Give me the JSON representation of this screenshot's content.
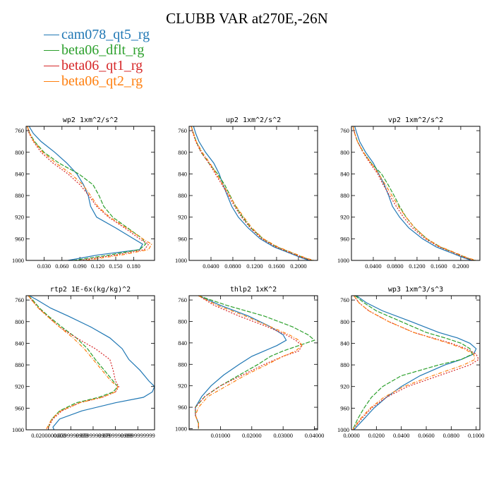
{
  "title": "CLUBB VAR at270E,-26N",
  "legend": [
    {
      "label": "cam078_qt5_rg",
      "color": "#1f77b4",
      "dash": ""
    },
    {
      "label": "beta06_dflt_rg",
      "color": "#2ca02c",
      "dash": "6,2"
    },
    {
      "label": "beta06_qt1_rg",
      "color": "#d62728",
      "dash": "2,2"
    },
    {
      "label": "beta06_qt2_rg",
      "color": "#ff7f0e",
      "dash": "5,2,1,2"
    }
  ],
  "chart_data": [
    {
      "type": "line",
      "title": "wp2  1xm^2/s^2",
      "ylim": [
        1000,
        752
      ],
      "yticks": [
        760,
        800,
        840,
        880,
        920,
        960,
        1000
      ],
      "ytick_labels": [
        "760",
        "800",
        "840",
        "880",
        "920",
        "960",
        "1000"
      ],
      "xlim": [
        0.0,
        0.215
      ],
      "xticks": [
        0.03,
        0.06,
        0.09,
        0.12,
        0.15,
        0.18
      ],
      "xtick_labels": [
        "0.030",
        "0.060",
        "0.090",
        "0.120",
        "0.150",
        "0.180"
      ],
      "y": [
        752,
        765,
        780,
        800,
        820,
        840,
        860,
        880,
        900,
        920,
        940,
        960,
        970,
        980,
        990,
        1000
      ],
      "series": [
        {
          "name": "cam078_qt5_rg",
          "values": [
            0.005,
            0.012,
            0.025,
            0.048,
            0.068,
            0.085,
            0.096,
            0.104,
            0.108,
            0.118,
            0.15,
            0.18,
            0.195,
            0.19,
            0.12,
            0.07
          ]
        },
        {
          "name": "beta06_dflt_rg",
          "values": [
            0.002,
            0.006,
            0.014,
            0.03,
            0.055,
            0.088,
            0.112,
            0.122,
            0.13,
            0.145,
            0.17,
            0.195,
            0.2,
            0.19,
            0.14,
            0.08
          ]
        },
        {
          "name": "beta06_qt1_rg",
          "values": [
            0.002,
            0.005,
            0.012,
            0.025,
            0.045,
            0.07,
            0.09,
            0.105,
            0.118,
            0.138,
            0.165,
            0.19,
            0.205,
            0.198,
            0.15,
            0.09
          ]
        },
        {
          "name": "beta06_qt2_rg",
          "values": [
            0.002,
            0.006,
            0.013,
            0.028,
            0.05,
            0.075,
            0.095,
            0.108,
            0.12,
            0.14,
            0.168,
            0.195,
            0.21,
            0.205,
            0.16,
            0.1
          ]
        }
      ]
    },
    {
      "type": "line",
      "title": "up2  1xm^2/s^2",
      "ylim": [
        1000,
        752
      ],
      "yticks": [
        760,
        800,
        840,
        880,
        920,
        960,
        1000
      ],
      "ytick_labels": [
        "760",
        "800",
        "840",
        "880",
        "920",
        "960",
        "1000"
      ],
      "xlim": [
        0.0,
        0.235
      ],
      "xticks": [
        0.04,
        0.08,
        0.12,
        0.16,
        0.2
      ],
      "xtick_labels": [
        "0.0400",
        "0.0800",
        "0.1200",
        "0.1600",
        "0.2000"
      ],
      "y": [
        752,
        765,
        780,
        800,
        820,
        840,
        860,
        880,
        900,
        920,
        940,
        960,
        975,
        985,
        995,
        1000
      ],
      "series": [
        {
          "name": "cam078_qt5_rg",
          "values": [
            0.008,
            0.012,
            0.018,
            0.03,
            0.045,
            0.055,
            0.062,
            0.07,
            0.078,
            0.09,
            0.108,
            0.13,
            0.155,
            0.18,
            0.205,
            0.22
          ]
        },
        {
          "name": "beta06_dflt_rg",
          "values": [
            0.004,
            0.008,
            0.013,
            0.022,
            0.036,
            0.052,
            0.065,
            0.075,
            0.085,
            0.098,
            0.113,
            0.135,
            0.16,
            0.185,
            0.21,
            0.225
          ]
        },
        {
          "name": "beta06_qt1_rg",
          "values": [
            0.004,
            0.007,
            0.012,
            0.022,
            0.036,
            0.048,
            0.06,
            0.072,
            0.083,
            0.096,
            0.112,
            0.133,
            0.158,
            0.183,
            0.208,
            0.225
          ]
        },
        {
          "name": "beta06_qt2_rg",
          "values": [
            0.004,
            0.008,
            0.013,
            0.024,
            0.038,
            0.05,
            0.062,
            0.074,
            0.086,
            0.1,
            0.115,
            0.136,
            0.162,
            0.187,
            0.212,
            0.228
          ]
        }
      ]
    },
    {
      "type": "line",
      "title": "vp2  1xm^2/s^2",
      "ylim": [
        1000,
        752
      ],
      "yticks": [
        760,
        800,
        840,
        880,
        920,
        960,
        1000
      ],
      "ytick_labels": [
        "760",
        "800",
        "840",
        "880",
        "920",
        "960",
        "1000"
      ],
      "xlim": [
        0.0,
        0.235
      ],
      "xticks": [
        0.04,
        0.08,
        0.12,
        0.16,
        0.2
      ],
      "xtick_labels": [
        "0.0400",
        "0.0800",
        "0.1200",
        "0.1600",
        "0.2000"
      ],
      "y": [
        752,
        765,
        780,
        800,
        820,
        840,
        860,
        880,
        900,
        920,
        940,
        960,
        975,
        985,
        995,
        1000
      ],
      "series": [
        {
          "name": "cam078_qt5_rg",
          "values": [
            0.006,
            0.01,
            0.015,
            0.026,
            0.04,
            0.05,
            0.06,
            0.068,
            0.075,
            0.088,
            0.105,
            0.13,
            0.155,
            0.18,
            0.205,
            0.22
          ]
        },
        {
          "name": "beta06_dflt_rg",
          "values": [
            0.003,
            0.006,
            0.011,
            0.022,
            0.036,
            0.055,
            0.067,
            0.078,
            0.088,
            0.1,
            0.116,
            0.138,
            0.162,
            0.186,
            0.21,
            0.225
          ]
        },
        {
          "name": "beta06_qt1_rg",
          "values": [
            0.003,
            0.006,
            0.011,
            0.021,
            0.034,
            0.048,
            0.058,
            0.07,
            0.082,
            0.095,
            0.112,
            0.135,
            0.16,
            0.185,
            0.208,
            0.225
          ]
        },
        {
          "name": "beta06_qt2_rg",
          "values": [
            0.003,
            0.006,
            0.011,
            0.022,
            0.036,
            0.05,
            0.062,
            0.074,
            0.086,
            0.1,
            0.116,
            0.138,
            0.163,
            0.188,
            0.212,
            0.228
          ]
        }
      ]
    },
    {
      "type": "line",
      "title": "rtp2  1E-6x(kg/kg)^2",
      "ylim": [
        1000,
        752
      ],
      "yticks": [
        760,
        800,
        840,
        880,
        920,
        960,
        1000
      ],
      "ytick_labels": [
        "760",
        "800",
        "840",
        "880",
        "920",
        "960",
        "1000"
      ],
      "xlim": [
        0.0,
        0.115
      ],
      "xticks": [
        0.02,
        0.04,
        0.06,
        0.08,
        0.1
      ],
      "xtick_labels": [
        "0.0200000000",
        "0.0399999999",
        "0.0599999999",
        "0.0799999999",
        "0.0999999999"
      ],
      "y": [
        752,
        760,
        775,
        790,
        810,
        830,
        850,
        870,
        890,
        910,
        920,
        930,
        940,
        950,
        965,
        980,
        995,
        1000
      ],
      "series": [
        {
          "name": "cam078_qt5_rg",
          "values": [
            0.003,
            0.01,
            0.022,
            0.038,
            0.058,
            0.075,
            0.086,
            0.092,
            0.102,
            0.11,
            0.115,
            0.113,
            0.105,
            0.08,
            0.05,
            0.03,
            0.024,
            0.025
          ]
        },
        {
          "name": "beta06_dflt_rg",
          "values": [
            0.002,
            0.006,
            0.012,
            0.02,
            0.032,
            0.045,
            0.055,
            0.062,
            0.07,
            0.078,
            0.082,
            0.078,
            0.065,
            0.045,
            0.03,
            0.023,
            0.02,
            0.02
          ]
        },
        {
          "name": "beta06_qt1_rg",
          "values": [
            0.002,
            0.005,
            0.011,
            0.019,
            0.03,
            0.045,
            0.062,
            0.075,
            0.078,
            0.08,
            0.083,
            0.08,
            0.068,
            0.048,
            0.032,
            0.024,
            0.02,
            0.02
          ]
        },
        {
          "name": "beta06_qt2_rg",
          "values": [
            0.002,
            0.005,
            0.011,
            0.019,
            0.03,
            0.042,
            0.052,
            0.06,
            0.068,
            0.076,
            0.082,
            0.08,
            0.068,
            0.048,
            0.031,
            0.023,
            0.019,
            0.018
          ]
        }
      ]
    },
    {
      "type": "line",
      "title": "thlp2  1xK^2",
      "ylim": [
        1002,
        752
      ],
      "yticks": [
        760,
        800,
        840,
        880,
        920,
        960,
        1000
      ],
      "ytick_labels": [
        "760",
        "800",
        "840",
        "880",
        "920",
        "960",
        "1000"
      ],
      "xlim": [
        0.0,
        0.041
      ],
      "xticks": [
        0.01,
        0.02,
        0.03,
        0.04
      ],
      "xtick_labels": [
        "0.01000",
        "0.02000",
        "0.03000",
        "0.04000"
      ],
      "y": [
        752,
        770,
        790,
        810,
        825,
        835,
        845,
        855,
        865,
        880,
        900,
        920,
        940,
        960,
        975,
        990,
        1000
      ],
      "series": [
        {
          "name": "cam078_qt5_rg",
          "values": [
            0.003,
            0.01,
            0.019,
            0.026,
            0.03,
            0.031,
            0.028,
            0.024,
            0.02,
            0.016,
            0.011,
            0.007,
            0.004,
            0.002,
            0.002,
            0.003,
            0.003
          ]
        },
        {
          "name": "beta06_dflt_rg",
          "values": [
            0.003,
            0.012,
            0.024,
            0.033,
            0.038,
            0.04,
            0.035,
            0.03,
            0.026,
            0.022,
            0.016,
            0.01,
            0.005,
            0.002,
            0.002,
            0.003,
            0.003
          ]
        },
        {
          "name": "beta06_qt1_rg",
          "values": [
            0.003,
            0.008,
            0.016,
            0.025,
            0.031,
            0.034,
            0.036,
            0.035,
            0.03,
            0.024,
            0.017,
            0.01,
            0.005,
            0.002,
            0.002,
            0.003,
            0.003
          ]
        },
        {
          "name": "beta06_qt2_rg",
          "values": [
            0.003,
            0.009,
            0.018,
            0.026,
            0.032,
            0.035,
            0.036,
            0.034,
            0.03,
            0.025,
            0.018,
            0.012,
            0.006,
            0.003,
            0.002,
            0.003,
            0.003
          ]
        }
      ]
    },
    {
      "type": "line",
      "title": "wp3  1xm^3/s^3",
      "ylim": [
        1000,
        752
      ],
      "yticks": [
        760,
        800,
        840,
        880,
        920,
        960,
        1000
      ],
      "ytick_labels": [
        "760",
        "800",
        "840",
        "880",
        "920",
        "960",
        "1000"
      ],
      "xlim": [
        0.0,
        0.103
      ],
      "xticks": [
        0.0,
        0.02,
        0.04,
        0.06,
        0.08,
        0.1
      ],
      "xtick_labels": [
        "0.0000",
        "0.0200",
        "0.0400",
        "0.0600",
        "0.0800",
        "0.1000"
      ],
      "y": [
        752,
        765,
        780,
        800,
        820,
        830,
        840,
        850,
        860,
        870,
        880,
        900,
        920,
        940,
        960,
        980,
        1000
      ],
      "series": [
        {
          "name": "cam078_qt5_rg",
          "values": [
            0.004,
            0.012,
            0.025,
            0.048,
            0.07,
            0.085,
            0.095,
            0.1,
            0.098,
            0.088,
            0.075,
            0.055,
            0.04,
            0.028,
            0.018,
            0.01,
            0.002
          ]
        },
        {
          "name": "beta06_dflt_rg",
          "values": [
            0.003,
            0.01,
            0.02,
            0.04,
            0.06,
            0.075,
            0.088,
            0.095,
            0.097,
            0.088,
            0.07,
            0.04,
            0.025,
            0.016,
            0.01,
            0.005,
            0.001
          ]
        },
        {
          "name": "beta06_qt1_rg",
          "values": [
            0.002,
            0.006,
            0.014,
            0.03,
            0.05,
            0.065,
            0.08,
            0.092,
            0.1,
            0.102,
            0.095,
            0.07,
            0.045,
            0.028,
            0.016,
            0.008,
            0.001
          ]
        },
        {
          "name": "beta06_qt2_rg",
          "values": [
            0.002,
            0.006,
            0.014,
            0.03,
            0.05,
            0.064,
            0.078,
            0.09,
            0.098,
            0.099,
            0.09,
            0.065,
            0.042,
            0.026,
            0.015,
            0.007,
            0.001
          ]
        }
      ]
    }
  ]
}
